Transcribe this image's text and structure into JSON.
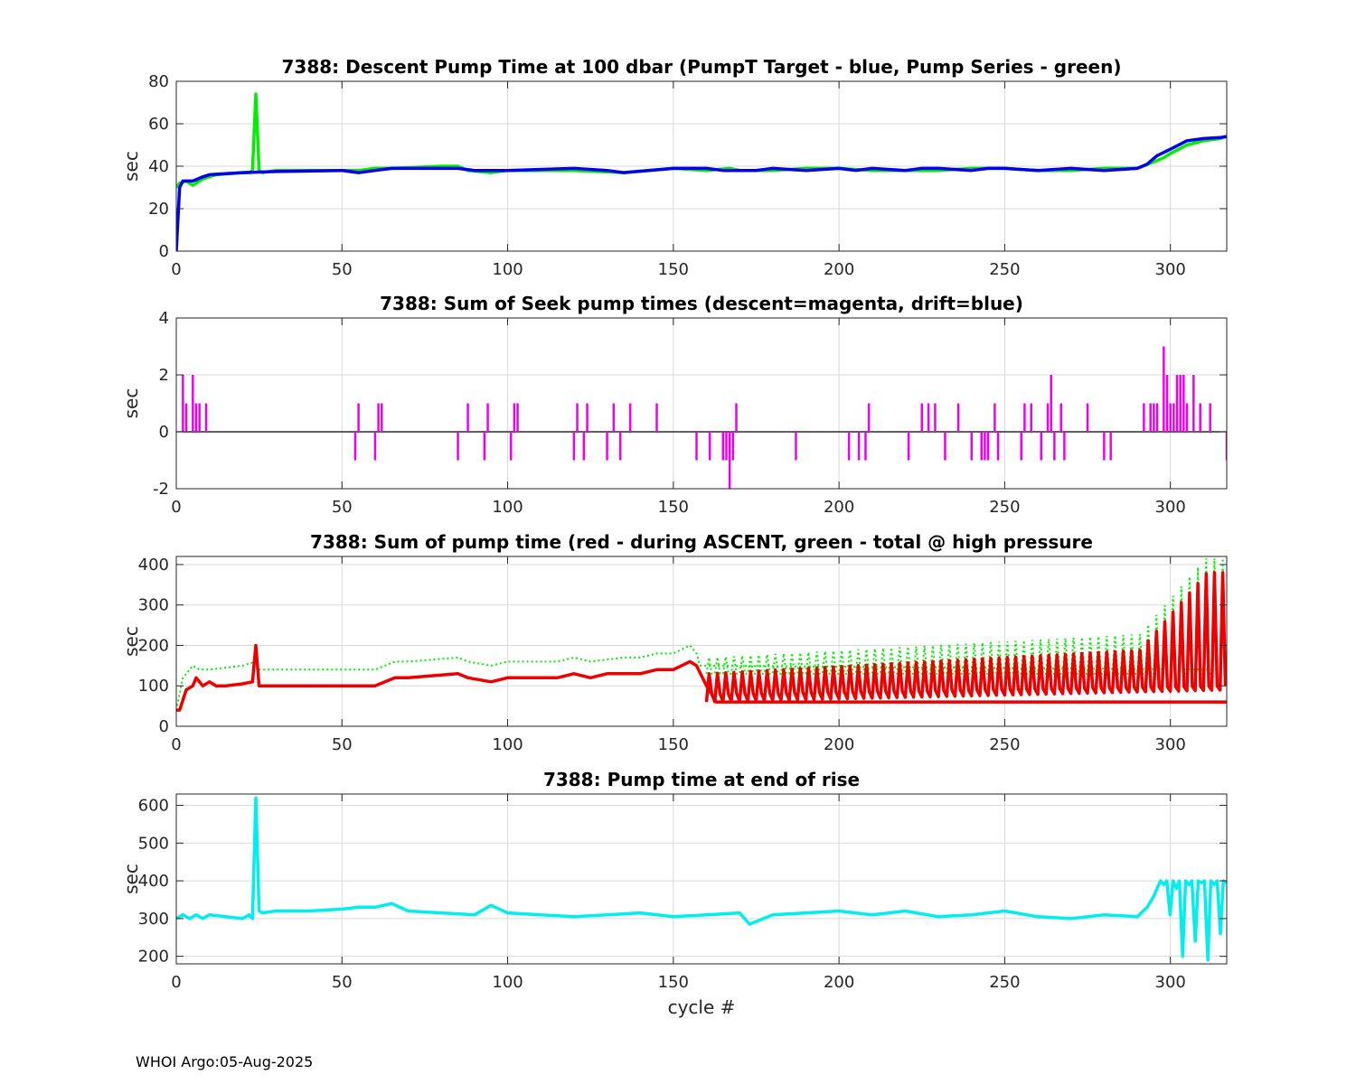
{
  "footer": "WHOI Argo:05-Aug-2025",
  "colors": {
    "green": "#00ee00",
    "blue": "#0000ee",
    "magenta": "#ee00ee",
    "red": "#ee0000",
    "cyan": "#00eeee",
    "grid": "#d9d9d9",
    "axis": "#262626"
  },
  "chart_data": [
    {
      "type": "line",
      "title": "7388: Descent Pump Time at 100 dbar (PumpT Target - blue, Pump Series - green)",
      "xlabel": "",
      "ylabel": "sec",
      "xlim": [
        0,
        317
      ],
      "ylim": [
        0,
        80
      ],
      "xticks": [
        0,
        50,
        100,
        150,
        200,
        250,
        300
      ],
      "yticks": [
        0,
        20,
        40,
        60,
        80
      ],
      "series": [
        {
          "name": "Pump Series",
          "color": "green",
          "style": "solid",
          "x": [
            0,
            1,
            3,
            5,
            8,
            12,
            20,
            22,
            23,
            24,
            25,
            26,
            30,
            50,
            55,
            60,
            65,
            80,
            85,
            88,
            95,
            100,
            120,
            135,
            150,
            160,
            167,
            170,
            180,
            190,
            200,
            210,
            220,
            230,
            240,
            250,
            260,
            270,
            280,
            290,
            295,
            298,
            300,
            305,
            310,
            315,
            317
          ],
          "y": [
            30,
            32,
            33,
            31,
            34,
            36,
            37,
            37,
            38,
            74,
            38,
            37,
            38,
            38,
            38,
            39,
            39,
            40,
            40,
            38,
            37,
            38,
            38,
            37,
            39,
            38,
            39,
            38,
            38,
            39,
            39,
            38,
            38,
            38,
            39,
            39,
            38,
            38,
            39,
            39,
            42,
            44,
            46,
            50,
            52,
            53,
            54
          ]
        },
        {
          "name": "PumpT Target",
          "color": "blue",
          "style": "solid",
          "x": [
            0,
            1,
            2,
            5,
            8,
            10,
            20,
            30,
            50,
            55,
            60,
            65,
            80,
            85,
            90,
            95,
            100,
            120,
            130,
            135,
            150,
            160,
            165,
            168,
            175,
            180,
            190,
            200,
            205,
            210,
            220,
            225,
            230,
            240,
            245,
            250,
            260,
            270,
            280,
            290,
            293,
            296,
            300,
            305,
            310,
            315,
            317
          ],
          "y": [
            0,
            30,
            33,
            33,
            35,
            36,
            37,
            37.5,
            38,
            37,
            38,
            39,
            39,
            39,
            38,
            38,
            38,
            39,
            38,
            37,
            39,
            39,
            38,
            38,
            38,
            39,
            38,
            39,
            38,
            39,
            38,
            39,
            39,
            38,
            39,
            39,
            38,
            39,
            38,
            39,
            41,
            45,
            48,
            52,
            53,
            53.5,
            54
          ]
        }
      ]
    },
    {
      "type": "bar",
      "title": "7388: Sum of Seek pump times (descent=magenta, drift=blue)",
      "xlabel": "",
      "ylabel": "sec",
      "xlim": [
        0,
        317
      ],
      "ylim": [
        -2,
        4
      ],
      "xticks": [
        0,
        50,
        100,
        150,
        200,
        250,
        300
      ],
      "yticks": [
        -2,
        0,
        2,
        4
      ],
      "series": [
        {
          "name": "descent",
          "color": "magenta",
          "x": [
            2,
            3,
            5,
            6,
            7,
            9,
            54,
            55,
            60,
            61,
            62,
            85,
            88,
            93,
            94,
            101,
            102,
            103,
            120,
            121,
            123,
            124,
            130,
            132,
            134,
            137,
            145,
            157,
            161,
            165,
            166,
            167,
            168,
            169,
            187,
            203,
            206,
            208,
            209,
            221,
            225,
            227,
            229,
            232,
            236,
            240,
            243,
            244,
            245,
            247,
            248,
            255,
            256,
            258,
            261,
            263,
            264,
            265,
            267,
            268,
            275,
            280,
            282,
            292,
            294,
            295,
            296,
            298,
            299,
            300,
            301,
            302,
            303,
            304,
            305,
            307,
            309,
            312,
            317
          ],
          "values": [
            2,
            1,
            2,
            1,
            1,
            1,
            -1,
            1,
            -1,
            1,
            1,
            -1,
            1,
            -1,
            1,
            -1,
            1,
            1,
            -1,
            1,
            -1,
            1,
            -1,
            1,
            -1,
            1,
            1,
            -1,
            -1,
            -1,
            -1,
            -2,
            -1,
            1,
            -1,
            -1,
            -1,
            -1,
            1,
            -1,
            1,
            1,
            1,
            -1,
            1,
            -1,
            -1,
            -1,
            -1,
            1,
            -1,
            -1,
            1,
            1,
            -1,
            1,
            2,
            -1,
            1,
            -1,
            1,
            -1,
            -1,
            1,
            1,
            1,
            1,
            3,
            2,
            1,
            1,
            2,
            2,
            2,
            1,
            2,
            1,
            1,
            -1
          ]
        }
      ]
    },
    {
      "type": "line",
      "title": "7388: Sum of pump time (red - during ASCENT, green - total @ high pressure",
      "xlabel": "",
      "ylabel": "sec",
      "xlim": [
        0,
        317
      ],
      "ylim": [
        0,
        420
      ],
      "xticks": [
        0,
        50,
        100,
        150,
        200,
        250,
        300
      ],
      "yticks": [
        0,
        100,
        200,
        300,
        400
      ],
      "series": [
        {
          "name": "total @ high pressure",
          "color": "green",
          "style": "dotted",
          "x": [
            0,
            2,
            4,
            5,
            7,
            10,
            20,
            24,
            25,
            30,
            40,
            50,
            60,
            66,
            70,
            85,
            88,
            95,
            100,
            115,
            120,
            125,
            135,
            140,
            145,
            150,
            155,
            157,
            158,
            317
          ],
          "y": [
            40,
            120,
            140,
            150,
            140,
            140,
            150,
            160,
            140,
            140,
            140,
            140,
            140,
            160,
            160,
            170,
            160,
            150,
            160,
            160,
            170,
            160,
            170,
            170,
            180,
            180,
            200,
            180,
            150,
            140
          ]
        },
        {
          "name": "during ASCENT",
          "color": "red",
          "style": "solid",
          "x": [
            0,
            1,
            3,
            5,
            6,
            8,
            10,
            12,
            15,
            20,
            23,
            24,
            25,
            30,
            40,
            50,
            60,
            66,
            70,
            85,
            88,
            95,
            100,
            115,
            120,
            125,
            130,
            135,
            140,
            145,
            150,
            155,
            157,
            160,
            163,
            317
          ],
          "y": [
            40,
            40,
            90,
            100,
            120,
            100,
            110,
            100,
            100,
            105,
            110,
            200,
            100,
            100,
            100,
            100,
            100,
            120,
            120,
            130,
            120,
            110,
            120,
            120,
            130,
            120,
            130,
            130,
            130,
            140,
            140,
            160,
            150,
            100,
            60,
            60
          ]
        }
      ]
    },
    {
      "type": "line",
      "title": "7388: Pump time at end of rise",
      "xlabel": "cycle #",
      "ylabel": "sec",
      "xlim": [
        0,
        317
      ],
      "ylim": [
        180,
        630
      ],
      "xticks": [
        0,
        50,
        100,
        150,
        200,
        250,
        300
      ],
      "yticks": [
        200,
        300,
        400,
        500,
        600
      ],
      "series": [
        {
          "name": "end of rise",
          "color": "cyan",
          "style": "solid",
          "x": [
            0,
            2,
            4,
            6,
            8,
            10,
            15,
            20,
            22,
            23,
            24,
            25,
            26,
            30,
            40,
            50,
            55,
            60,
            65,
            70,
            80,
            90,
            95,
            100,
            110,
            120,
            130,
            140,
            150,
            160,
            170,
            173,
            180,
            190,
            200,
            210,
            220,
            230,
            240,
            250,
            260,
            270,
            280,
            290,
            293,
            295,
            296
          ],
          "y": [
            300,
            310,
            300,
            310,
            300,
            310,
            305,
            300,
            310,
            300,
            620,
            320,
            315,
            320,
            320,
            325,
            330,
            330,
            340,
            320,
            315,
            310,
            335,
            315,
            310,
            305,
            310,
            315,
            305,
            310,
            315,
            285,
            310,
            315,
            320,
            310,
            320,
            305,
            310,
            320,
            305,
            300,
            310,
            305,
            330,
            360,
            380
          ]
        }
      ]
    }
  ]
}
